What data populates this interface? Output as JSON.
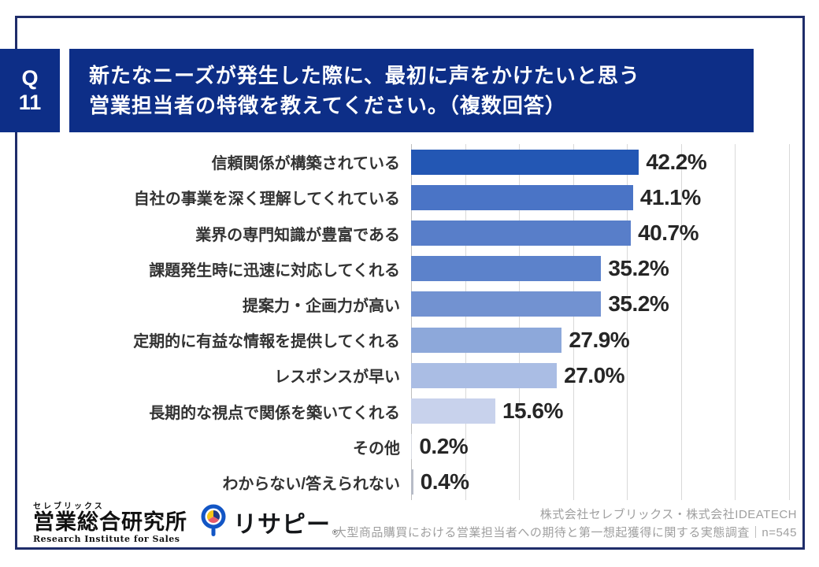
{
  "question": {
    "number_line1": "Q",
    "number_line2": "11",
    "title_line1": "新たなニーズが発生した際に、最初に声をかけたいと思う",
    "title_line2": "営業担当者の特徴を教えてください。（複数回答）"
  },
  "chart_data": {
    "type": "bar",
    "orientation": "horizontal",
    "categories": [
      "信頼関係が構築されている",
      "自社の事業を深く理解してくれている",
      "業界の専門知識が豊富である",
      "課題発生時に迅速に対応してくれる",
      "提案力・企画力が高い",
      "定期的に有益な情報を提供してくれる",
      "レスポンスが早い",
      "長期的な視点で関係を築いてくれる",
      "その他",
      "わからない/答えられない"
    ],
    "values": [
      42.2,
      41.1,
      40.7,
      35.2,
      35.2,
      27.9,
      27.0,
      15.6,
      0.2,
      0.4
    ],
    "value_labels": [
      "42.2%",
      "41.1%",
      "40.7%",
      "35.2%",
      "35.2%",
      "27.9%",
      "27.0%",
      "15.6%",
      "0.2%",
      "0.4%"
    ],
    "bar_colors": [
      "#2357b4",
      "#4a74c6",
      "#587ec9",
      "#5c82cb",
      "#7292d1",
      "#8da8da",
      "#aabde4",
      "#c8d2ec",
      "#d9dce3",
      "#b7bcc7"
    ],
    "xlim": [
      0,
      70
    ],
    "gridline_interval": 10,
    "grid": true,
    "legend": "none",
    "value_label_position": "end-of-bar"
  },
  "footer": {
    "logo_reading": "セレブリックス",
    "logo_main": "営業総合研究所",
    "logo_sub": "Research Institute for Sales",
    "brand": "リサピー",
    "brand_mark": "®",
    "credit_line1": "株式会社セレブリックス・株式会社IDEATECH",
    "credit_line2": "大型商品購買における営業担当者への期待と第一想起獲得に関する実態調査｜n=545"
  },
  "colors": {
    "header_navy": "#0d2e87",
    "card_border": "#1f2d6a",
    "gridline": "#d9d9d9",
    "axis_line": "#bfbfbf",
    "category_text": "#333333",
    "value_text": "#262626",
    "credit_text": "#9f9f9f",
    "logo_ring_blue": "#1356c5",
    "logo_pie_yellow": "#f5c518",
    "logo_pie_red": "#e85a6a",
    "logo_pie_navy": "#203a85"
  }
}
